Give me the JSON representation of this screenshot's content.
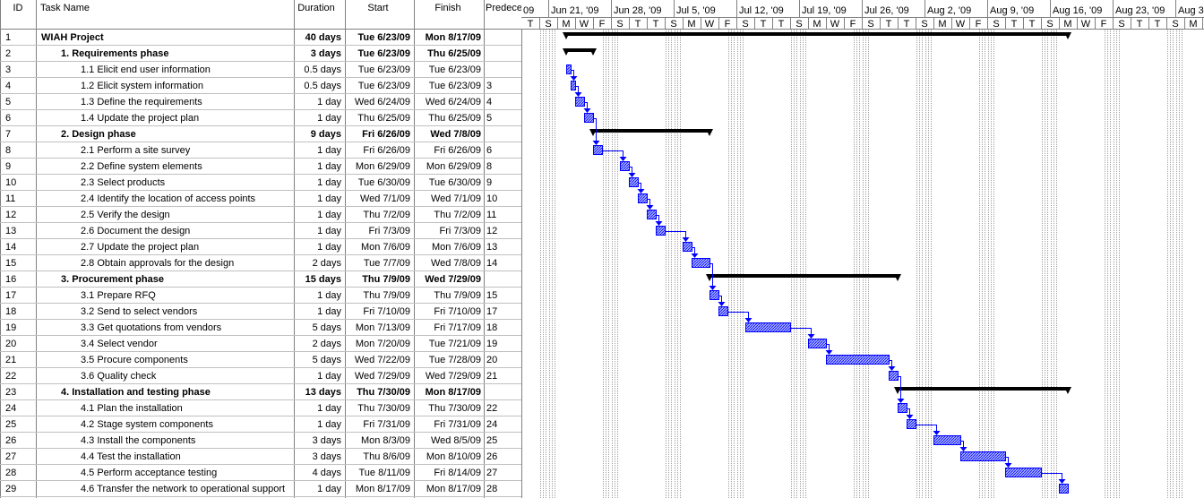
{
  "table": {
    "columns": [
      "ID",
      "Task Name",
      "Duration",
      "Start",
      "Finish",
      "Predecessors"
    ],
    "tasks": [
      {
        "id": 1,
        "name": "WIAH Project",
        "duration": "40 days",
        "start": "Tue 6/23/09",
        "finish": "Mon 8/17/09",
        "predecessor": null,
        "summary": true
      },
      {
        "id": 2,
        "name": "1. Requirements phase",
        "duration": "3 days",
        "start": "Tue 6/23/09",
        "finish": "Thu 6/25/09",
        "predecessor": null,
        "summary": true
      },
      {
        "id": 3,
        "name": "1.1 Elicit end user information",
        "duration": "0.5 days",
        "start": "Tue 6/23/09",
        "finish": "Tue 6/23/09",
        "predecessor": null,
        "summary": false
      },
      {
        "id": 4,
        "name": "1.2 Elicit system information",
        "duration": "0.5 days",
        "start": "Tue 6/23/09",
        "finish": "Tue 6/23/09",
        "predecessor": 3,
        "summary": false
      },
      {
        "id": 5,
        "name": "1.3 Define the requirements",
        "duration": "1 day",
        "start": "Wed 6/24/09",
        "finish": "Wed 6/24/09",
        "predecessor": 4,
        "summary": false
      },
      {
        "id": 6,
        "name": "1.4 Update the project plan",
        "duration": "1 day",
        "start": "Thu 6/25/09",
        "finish": "Thu 6/25/09",
        "predecessor": 5,
        "summary": false
      },
      {
        "id": 7,
        "name": "2. Design phase",
        "duration": "9 days",
        "start": "Fri 6/26/09",
        "finish": "Wed 7/8/09",
        "predecessor": null,
        "summary": true
      },
      {
        "id": 8,
        "name": "2.1 Perform a site survey",
        "duration": "1 day",
        "start": "Fri 6/26/09",
        "finish": "Fri 6/26/09",
        "predecessor": 6,
        "summary": false
      },
      {
        "id": 9,
        "name": "2.2 Define system elements",
        "duration": "1 day",
        "start": "Mon 6/29/09",
        "finish": "Mon 6/29/09",
        "predecessor": 8,
        "summary": false
      },
      {
        "id": 10,
        "name": "2.3 Select products",
        "duration": "1 day",
        "start": "Tue 6/30/09",
        "finish": "Tue 6/30/09",
        "predecessor": 9,
        "summary": false
      },
      {
        "id": 11,
        "name": "2.4 Identify the location of access points",
        "duration": "1 day",
        "start": "Wed 7/1/09",
        "finish": "Wed 7/1/09",
        "predecessor": 10,
        "summary": false
      },
      {
        "id": 12,
        "name": "2.5 Verify the design",
        "duration": "1 day",
        "start": "Thu 7/2/09",
        "finish": "Thu 7/2/09",
        "predecessor": 11,
        "summary": false
      },
      {
        "id": 13,
        "name": "2.6 Document the design",
        "duration": "1 day",
        "start": "Fri 7/3/09",
        "finish": "Fri 7/3/09",
        "predecessor": 12,
        "summary": false
      },
      {
        "id": 14,
        "name": "2.7 Update the project plan",
        "duration": "1 day",
        "start": "Mon 7/6/09",
        "finish": "Mon 7/6/09",
        "predecessor": 13,
        "summary": false
      },
      {
        "id": 15,
        "name": "2.8 Obtain approvals for the design",
        "duration": "2 days",
        "start": "Tue 7/7/09",
        "finish": "Wed 7/8/09",
        "predecessor": 14,
        "summary": false
      },
      {
        "id": 16,
        "name": "3. Procurement phase",
        "duration": "15 days",
        "start": "Thu 7/9/09",
        "finish": "Wed 7/29/09",
        "predecessor": null,
        "summary": true
      },
      {
        "id": 17,
        "name": "3.1 Prepare RFQ",
        "duration": "1 day",
        "start": "Thu 7/9/09",
        "finish": "Thu 7/9/09",
        "predecessor": 15,
        "summary": false
      },
      {
        "id": 18,
        "name": "3.2 Send to select vendors",
        "duration": "1 day",
        "start": "Fri 7/10/09",
        "finish": "Fri 7/10/09",
        "predecessor": 17,
        "summary": false
      },
      {
        "id": 19,
        "name": "3.3 Get quotations from vendors",
        "duration": "5 days",
        "start": "Mon 7/13/09",
        "finish": "Fri 7/17/09",
        "predecessor": 18,
        "summary": false
      },
      {
        "id": 20,
        "name": "3.4 Select vendor",
        "duration": "2 days",
        "start": "Mon 7/20/09",
        "finish": "Tue 7/21/09",
        "predecessor": 19,
        "summary": false
      },
      {
        "id": 21,
        "name": "3.5 Procure components",
        "duration": "5 days",
        "start": "Wed 7/22/09",
        "finish": "Tue 7/28/09",
        "predecessor": 20,
        "summary": false
      },
      {
        "id": 22,
        "name": "3.6 Quality check",
        "duration": "1 day",
        "start": "Wed 7/29/09",
        "finish": "Wed 7/29/09",
        "predecessor": 21,
        "summary": false
      },
      {
        "id": 23,
        "name": "4. Installation and testing phase",
        "duration": "13 days",
        "start": "Thu 7/30/09",
        "finish": "Mon 8/17/09",
        "predecessor": null,
        "summary": true
      },
      {
        "id": 24,
        "name": "4.1 Plan the installation",
        "duration": "1 day",
        "start": "Thu 7/30/09",
        "finish": "Thu 7/30/09",
        "predecessor": 22,
        "summary": false
      },
      {
        "id": 25,
        "name": "4.2 Stage system components",
        "duration": "1 day",
        "start": "Fri 7/31/09",
        "finish": "Fri 7/31/09",
        "predecessor": 24,
        "summary": false
      },
      {
        "id": 26,
        "name": "4.3 Install the components",
        "duration": "3 days",
        "start": "Mon 8/3/09",
        "finish": "Wed 8/5/09",
        "predecessor": 25,
        "summary": false
      },
      {
        "id": 27,
        "name": "4.4 Test the installation",
        "duration": "3 days",
        "start": "Thu 8/6/09",
        "finish": "Mon 8/10/09",
        "predecessor": 26,
        "summary": false
      },
      {
        "id": 28,
        "name": "4.5 Perform acceptance testing",
        "duration": "4 days",
        "start": "Tue 8/11/09",
        "finish": "Fri 8/14/09",
        "predecessor": 27,
        "summary": false
      },
      {
        "id": 29,
        "name": "4.6 Transfer the network to operational support",
        "duration": "1 day",
        "start": "Mon 8/17/09",
        "finish": "Mon 8/17/09",
        "predecessor": 28,
        "summary": false
      }
    ]
  },
  "timescale": {
    "weeks": [
      "09",
      "Jun 21, '09",
      "Jun 28, '09",
      "Jul 5, '09",
      "Jul 12, '09",
      "Jul 19, '09",
      "Jul 26, '09",
      "Aug 2, '09",
      "Aug 9, '09",
      "Aug 16, '09",
      "Aug 23, '09",
      "Aug 3"
    ],
    "days": [
      "T",
      "S",
      "M",
      "W",
      "F",
      "S",
      "T",
      "T",
      "S",
      "M",
      "W",
      "F",
      "S",
      "T",
      "T",
      "S",
      "M",
      "W",
      "F",
      "S",
      "T",
      "T",
      "S",
      "M",
      "W",
      "F",
      "S",
      "T",
      "T",
      "S",
      "M",
      "W",
      "F",
      "S",
      "T",
      "T",
      "S",
      "M"
    ]
  }
}
